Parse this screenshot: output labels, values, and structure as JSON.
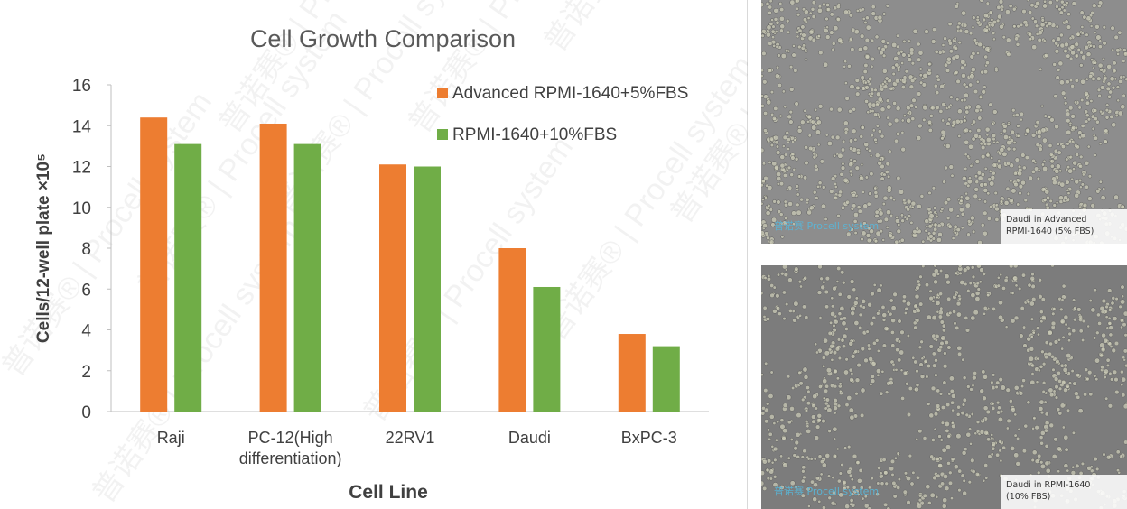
{
  "chart_data": {
    "type": "bar",
    "title": "Cell Growth Comparison",
    "xlabel": "Cell Line",
    "ylabel": "Cells/12-well plate ×10⁵",
    "categories": [
      [
        "Raji"
      ],
      [
        "PC-12(High",
        "differentiation)"
      ],
      [
        "22RV1"
      ],
      [
        "Daudi"
      ],
      [
        "BxPC-3"
      ]
    ],
    "series": [
      {
        "name": "Advanced RPMI-1640+5%FBS",
        "color": "#ed7d31",
        "values": [
          14.4,
          14.1,
          12.1,
          8.0,
          3.8
        ]
      },
      {
        "name": "RPMI-1640+10%FBS",
        "color": "#70ad47",
        "values": [
          13.1,
          13.1,
          12.0,
          6.1,
          3.2
        ]
      }
    ],
    "ylim": [
      0,
      16
    ],
    "yticks": [
      0,
      2,
      4,
      6,
      8,
      10,
      12,
      14,
      16
    ],
    "grid": false,
    "legend_position": "top-right"
  },
  "watermark": {
    "text": "Procell",
    "sub": "system",
    "cn": "普诺赛"
  },
  "images": {
    "top": {
      "caption_line1": "Daudi in Advanced",
      "caption_line2": "RPMI-1640 (5% FBS)",
      "logo": "普诺赛 Procell system"
    },
    "bottom": {
      "caption_line1": "Daudi in RPMI-1640",
      "caption_line2": "(10% FBS)",
      "logo": "普诺赛 Procell system"
    }
  }
}
